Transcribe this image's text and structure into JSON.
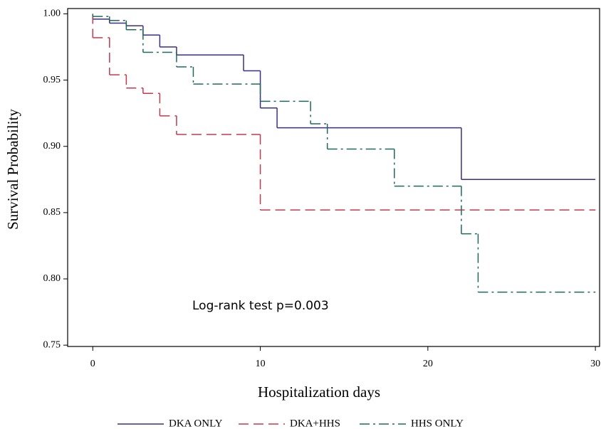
{
  "chart_data": {
    "type": "step",
    "xlabel": "Hospitalization days",
    "ylabel": "Survival Probability",
    "annotation": "Log-rank test p=0.003",
    "xlim": [
      -1.5,
      30.25
    ],
    "ylim": [
      0.749,
      1.004
    ],
    "xticks": [
      0,
      10,
      20,
      30
    ],
    "yticks": [
      {
        "value": 0.75,
        "label": "0.75"
      },
      {
        "value": 0.8,
        "label": "0.80"
      },
      {
        "value": 0.85,
        "label": "0.85"
      },
      {
        "value": 0.9,
        "label": "0.90"
      },
      {
        "value": 0.95,
        "label": "0.95"
      },
      {
        "value": 1,
        "label": "1.00"
      }
    ],
    "series": [
      {
        "name": "DKA ONLY",
        "color": "#3a2f86",
        "dash": "none",
        "x": [
          0,
          0,
          1,
          2,
          3,
          4,
          5,
          9,
          10,
          11,
          22,
          30
        ],
        "values": [
          1,
          0.996,
          0.993,
          0.991,
          0.984,
          0.975,
          0.969,
          0.957,
          0.929,
          0.914,
          0.875,
          0.875
        ]
      },
      {
        "name": "DKA+HHS",
        "color": "#c23a4e",
        "dash": "14,7",
        "x": [
          0,
          0,
          1,
          2,
          3,
          4,
          5,
          10,
          30
        ],
        "values": [
          1,
          0.982,
          0.954,
          0.944,
          0.94,
          0.923,
          0.909,
          0.852,
          0.852
        ]
      },
      {
        "name": "HHS ONLY",
        "color": "#1e6b5c",
        "dash": "14,5,3,5",
        "x": [
          0,
          0,
          1,
          2,
          3,
          5,
          6,
          10,
          13,
          14,
          18,
          22,
          23,
          30
        ],
        "values": [
          1,
          0.998,
          0.995,
          0.988,
          0.971,
          0.96,
          0.947,
          0.934,
          0.917,
          0.898,
          0.87,
          0.834,
          0.79,
          0.79
        ]
      }
    ]
  }
}
